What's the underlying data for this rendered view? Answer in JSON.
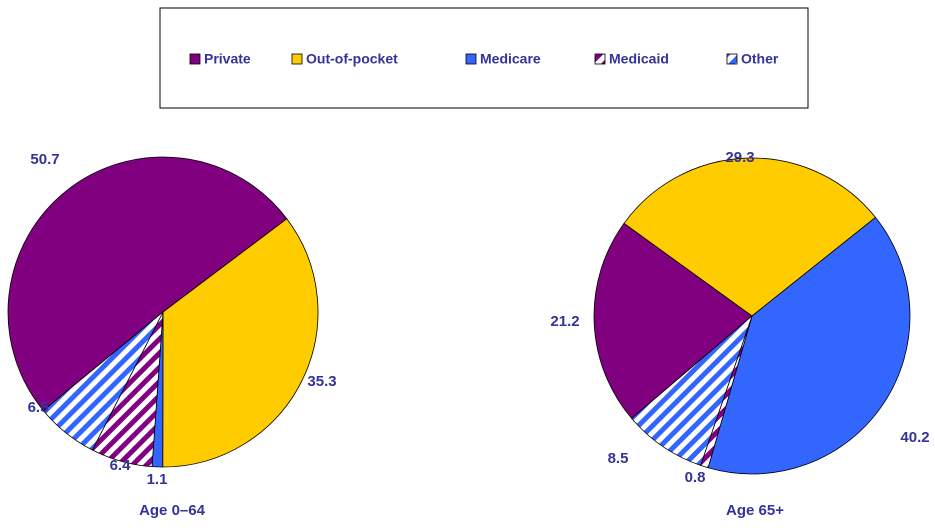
{
  "chart_data": [
    {
      "type": "pie",
      "title": "Age 0–64",
      "categories": [
        "Private",
        "Out-of-pocket",
        "Medicare",
        "Medicaid",
        "Other"
      ],
      "values": [
        50.7,
        35.3,
        1.1,
        6.4,
        6.5
      ],
      "colors": [
        "#800080",
        "#ffcc00",
        "#3366ff",
        "#800080",
        "#3366ff"
      ],
      "hatched": [
        false,
        false,
        false,
        true,
        true
      ]
    },
    {
      "type": "pie",
      "title": "Age 65+",
      "categories": [
        "Private",
        "Out-of-pocket",
        "Medicare",
        "Medicaid",
        "Other"
      ],
      "values": [
        21.2,
        29.3,
        40.2,
        0.8,
        8.5
      ],
      "colors": [
        "#800080",
        "#ffcc00",
        "#3366ff",
        "#800080",
        "#3366ff"
      ],
      "hatched": [
        false,
        false,
        false,
        true,
        true
      ]
    }
  ]
}
